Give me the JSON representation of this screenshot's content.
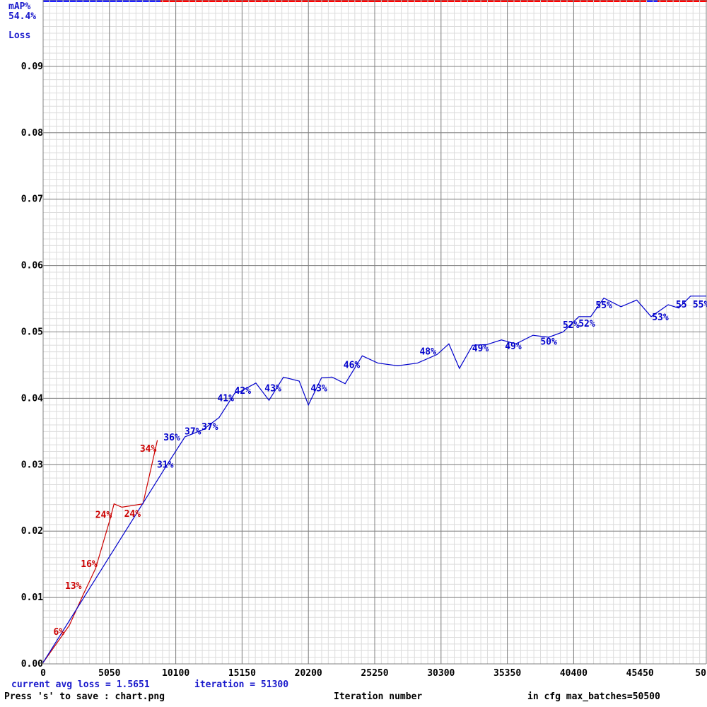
{
  "header": {
    "map_label": "mAP%",
    "map_value": "54.4%",
    "loss_label": "Loss"
  },
  "footer": {
    "avg_loss": "current avg loss = 1.5651",
    "iteration": "iteration = 51300",
    "save_hint": "Press 's' to save : chart.png",
    "xlabel": "Iteration number",
    "max_batches": "in cfg max_batches=50500"
  },
  "colors": {
    "map_line": "#0000cc",
    "red_line": "#cc0000",
    "grid_major": "#808080",
    "grid_minor": "#dcdcdc",
    "axis_label": "#000000",
    "top_bar_blue": "#2020ff",
    "top_bar_red": "#ff0000"
  },
  "chart_data": {
    "type": "line",
    "xlim": [
      0,
      50500
    ],
    "ylim": [
      0,
      0.1
    ],
    "xticks": [
      "0",
      "5050",
      "10100",
      "15150",
      "20200",
      "25250",
      "30300",
      "35350",
      "40400",
      "45450",
      "50"
    ],
    "yticks": [
      "0.00",
      "0.01",
      "0.02",
      "0.03",
      "0.04",
      "0.05",
      "0.06",
      "0.07",
      "0.08",
      "0.09"
    ],
    "grid": true,
    "series": [
      {
        "color": "#cc0000",
        "points": [
          [
            0,
            0.0002
          ],
          [
            2000,
            0.0058
          ],
          [
            3000,
            0.0102
          ],
          [
            4000,
            0.0144
          ],
          [
            5100,
            0.0218
          ],
          [
            5400,
            0.0241
          ],
          [
            6000,
            0.0236
          ],
          [
            7600,
            0.0241
          ],
          [
            8700,
            0.0337
          ]
        ],
        "labels": [
          {
            "x": 1200,
            "y": 0.0048,
            "text": "6%"
          },
          {
            "x": 2300,
            "y": 0.0117,
            "text": "13%"
          },
          {
            "x": 3500,
            "y": 0.015,
            "text": "16%"
          },
          {
            "x": 4600,
            "y": 0.0224,
            "text": "24%"
          },
          {
            "x": 6800,
            "y": 0.0226,
            "text": "24%"
          },
          {
            "x": 8000,
            "y": 0.0324,
            "text": "34%"
          }
        ]
      },
      {
        "color": "#0000cc",
        "points": [
          [
            0,
            0.0002
          ],
          [
            9500,
            0.0302
          ],
          [
            10800,
            0.0342
          ],
          [
            12200,
            0.0353
          ],
          [
            13400,
            0.0371
          ],
          [
            14600,
            0.0408
          ],
          [
            15000,
            0.041
          ],
          [
            16200,
            0.0423
          ],
          [
            17200,
            0.0397
          ],
          [
            18300,
            0.0432
          ],
          [
            19500,
            0.0426
          ],
          [
            20200,
            0.039
          ],
          [
            21200,
            0.0431
          ],
          [
            22000,
            0.0432
          ],
          [
            23000,
            0.0422
          ],
          [
            24300,
            0.0464
          ],
          [
            25500,
            0.0453
          ],
          [
            27000,
            0.0449
          ],
          [
            28500,
            0.0453
          ],
          [
            30000,
            0.0466
          ],
          [
            30900,
            0.0482
          ],
          [
            31700,
            0.0445
          ],
          [
            32700,
            0.048
          ],
          [
            33800,
            0.0481
          ],
          [
            34900,
            0.0488
          ],
          [
            36000,
            0.0482
          ],
          [
            37300,
            0.0495
          ],
          [
            38500,
            0.0492
          ],
          [
            39600,
            0.05
          ],
          [
            40800,
            0.0523
          ],
          [
            41700,
            0.0523
          ],
          [
            42700,
            0.0551
          ],
          [
            44000,
            0.0538
          ],
          [
            45200,
            0.0548
          ],
          [
            46300,
            0.0523
          ],
          [
            47600,
            0.0541
          ],
          [
            48400,
            0.0536
          ],
          [
            49300,
            0.0554
          ],
          [
            50500,
            0.0554
          ]
        ],
        "labels": [
          {
            "x": 9300,
            "y": 0.03,
            "text": "31%"
          },
          {
            "x": 9800,
            "y": 0.0341,
            "text": "36%"
          },
          {
            "x": 11400,
            "y": 0.035,
            "text": "37%"
          },
          {
            "x": 12700,
            "y": 0.0357,
            "text": "37%"
          },
          {
            "x": 13900,
            "y": 0.04,
            "text": "41%"
          },
          {
            "x": 15200,
            "y": 0.0411,
            "text": "42%"
          },
          {
            "x": 17500,
            "y": 0.0415,
            "text": "43%"
          },
          {
            "x": 21000,
            "y": 0.0415,
            "text": "43%"
          },
          {
            "x": 23500,
            "y": 0.045,
            "text": "46%"
          },
          {
            "x": 29300,
            "y": 0.047,
            "text": "48%"
          },
          {
            "x": 33300,
            "y": 0.0475,
            "text": "49%"
          },
          {
            "x": 35800,
            "y": 0.0478,
            "text": "49%"
          },
          {
            "x": 38500,
            "y": 0.0485,
            "text": "50%"
          },
          {
            "x": 40200,
            "y": 0.051,
            "text": "52%"
          },
          {
            "x": 41400,
            "y": 0.0512,
            "text": "52%"
          },
          {
            "x": 42700,
            "y": 0.054,
            "text": "55%"
          },
          {
            "x": 47000,
            "y": 0.0522,
            "text": "53%"
          },
          {
            "x": 48600,
            "y": 0.0541,
            "text": "55"
          },
          {
            "x": 50100,
            "y": 0.0541,
            "text": "55%"
          }
        ]
      }
    ]
  }
}
